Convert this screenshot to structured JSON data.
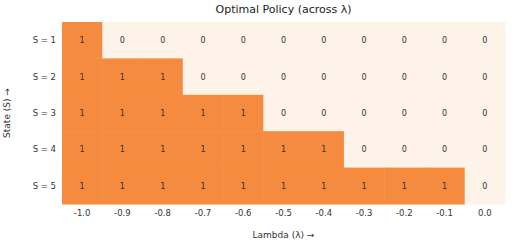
{
  "chart_data": {
    "type": "heatmap",
    "title": "Optimal Policy (across λ)",
    "x_label": "Lambda (λ) →",
    "y_label": "State (S) →",
    "x": [
      "-1.0",
      "-0.9",
      "-0.8",
      "-0.7",
      "-0.6",
      "-0.5",
      "-0.4",
      "-0.3",
      "-0.2",
      "-0.1",
      "0.0"
    ],
    "y": [
      "S = 1",
      "S = 2",
      "S = 3",
      "S = 4",
      "S = 5"
    ],
    "cells": [
      [
        1,
        0,
        0,
        0,
        0,
        0,
        0,
        0,
        0,
        0,
        0
      ],
      [
        1,
        1,
        1,
        0,
        0,
        0,
        0,
        0,
        0,
        0,
        0
      ],
      [
        1,
        1,
        1,
        1,
        1,
        0,
        0,
        0,
        0,
        0,
        0
      ],
      [
        1,
        1,
        1,
        1,
        1,
        1,
        1,
        0,
        0,
        0,
        0
      ],
      [
        1,
        1,
        1,
        1,
        1,
        1,
        1,
        1,
        1,
        1,
        0
      ]
    ],
    "colors": [
      "#fdf3e8",
      "#f58b3e"
    ],
    "data_labels": true
  }
}
